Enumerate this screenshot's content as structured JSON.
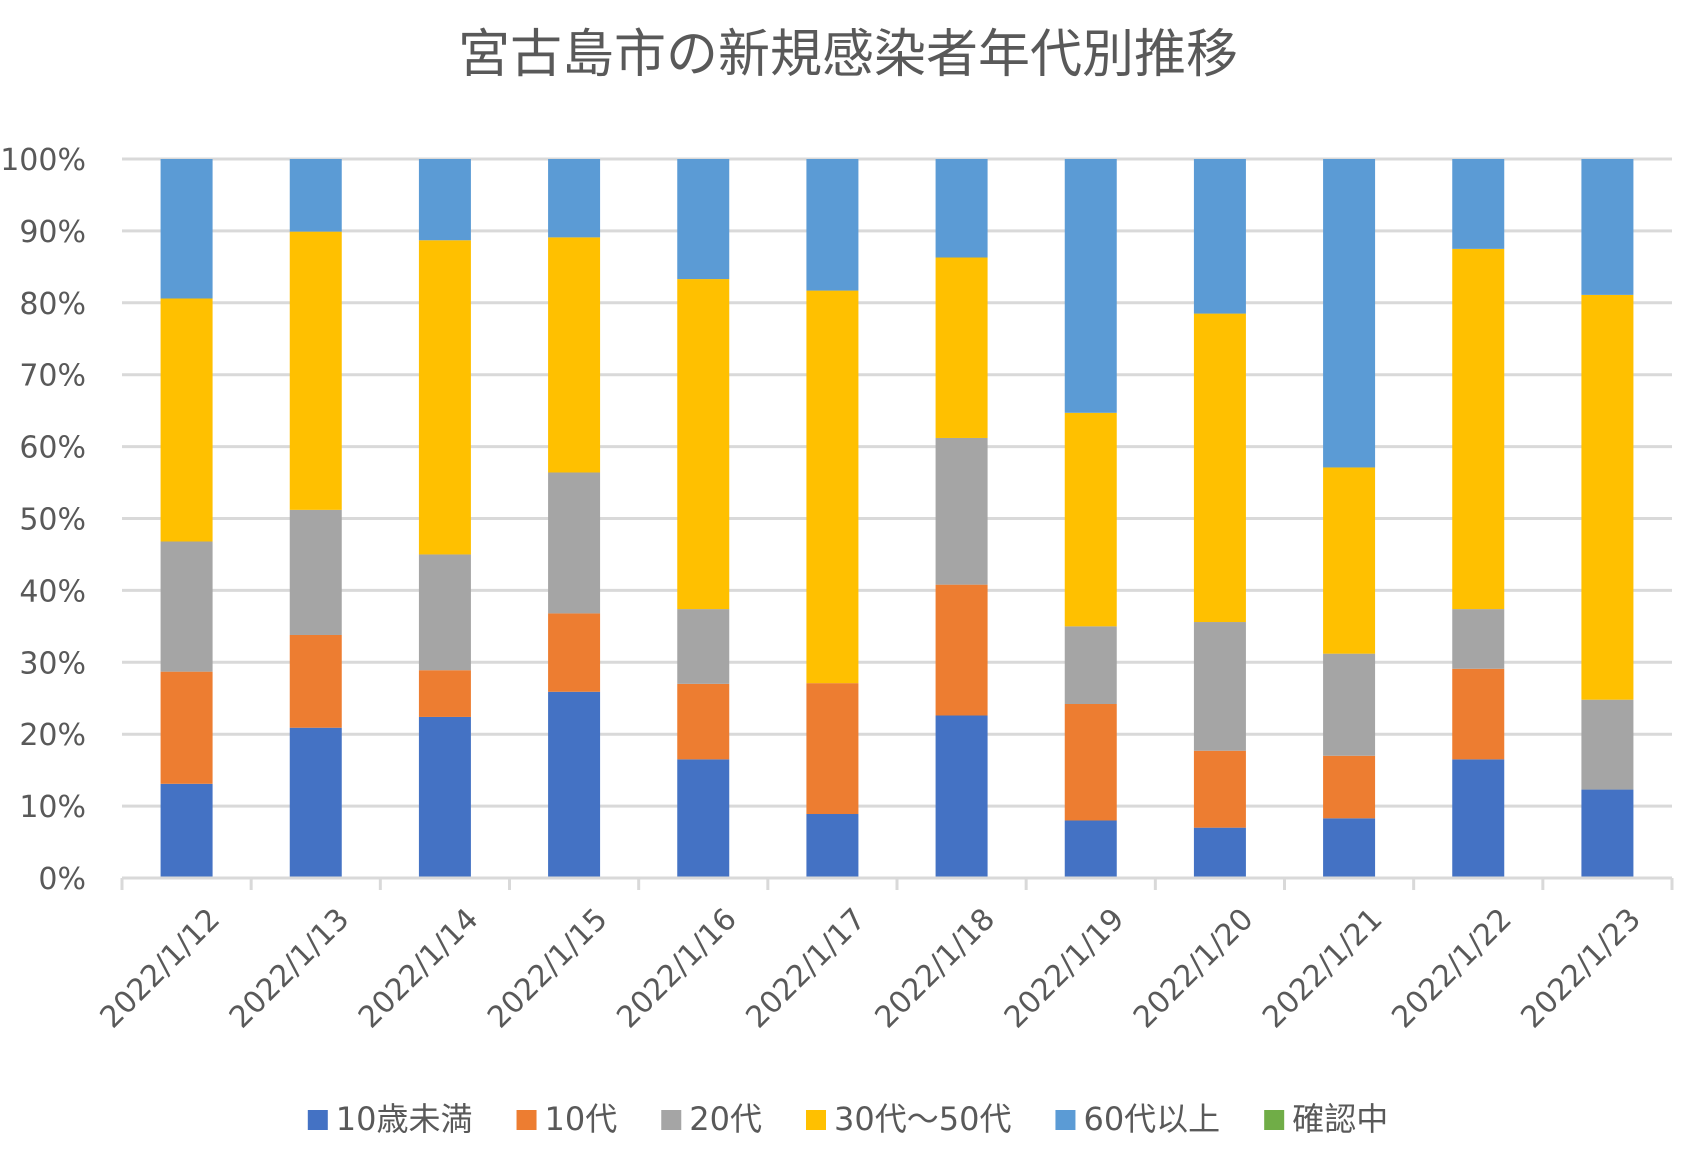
{
  "chart_data": {
    "type": "bar",
    "stacked": "percent",
    "title": "宮古島市の新規感染者年代別推移",
    "xlabel": "",
    "ylabel": "",
    "ylim": [
      0,
      100
    ],
    "y_ticks": [
      "0%",
      "10%",
      "20%",
      "30%",
      "40%",
      "50%",
      "60%",
      "70%",
      "80%",
      "90%",
      "100%"
    ],
    "grid": true,
    "legend_position": "bottom",
    "categories": [
      "2022/1/12",
      "2022/1/13",
      "2022/1/14",
      "2022/1/15",
      "2022/1/16",
      "2022/1/17",
      "2022/1/18",
      "2022/1/19",
      "2022/1/20",
      "2022/1/21",
      "2022/1/22",
      "2022/1/23"
    ],
    "series": [
      {
        "name": "10歳未満",
        "color": "#4472c4",
        "values": [
          13.1,
          20.9,
          22.4,
          25.9,
          16.5,
          8.9,
          22.6,
          8.0,
          7.0,
          8.3,
          16.5,
          12.3
        ]
      },
      {
        "name": "10代",
        "color": "#ed7d31",
        "values": [
          15.6,
          12.9,
          6.5,
          10.9,
          10.5,
          18.2,
          18.2,
          16.2,
          10.7,
          8.7,
          12.6,
          0
        ]
      },
      {
        "name": "20代",
        "color": "#a5a5a5",
        "values": [
          18.1,
          17.4,
          16.1,
          19.6,
          10.4,
          0,
          20.4,
          10.8,
          17.9,
          14.2,
          8.3,
          12.5
        ]
      },
      {
        "name": "30代～50代",
        "color": "#ffc000",
        "values": [
          33.8,
          38.7,
          43.7,
          32.7,
          45.9,
          54.6,
          25.1,
          29.7,
          42.9,
          25.9,
          50.1,
          56.3
        ]
      },
      {
        "name": "60代以上",
        "color": "#5b9bd5",
        "values": [
          19.4,
          10.1,
          11.3,
          10.9,
          16.7,
          18.3,
          13.7,
          35.3,
          21.5,
          42.9,
          12.5,
          18.9
        ]
      },
      {
        "name": "確認中",
        "color": "#70ad47",
        "values": [
          0,
          0,
          0,
          0,
          0,
          0,
          0,
          0,
          0,
          0,
          0,
          0
        ]
      }
    ]
  }
}
